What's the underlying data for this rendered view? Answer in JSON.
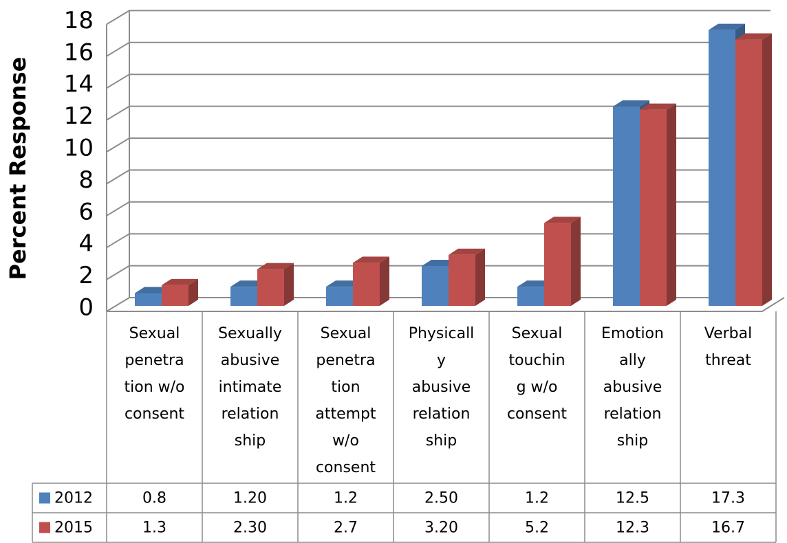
{
  "chart_data": {
    "type": "bar",
    "y_axis_label": "Percent Response",
    "categories": [
      "Sexual\npenetra\ntion w/o\nconsent",
      "Sexually\nabusive\nintimate\nrelation\nship",
      "Sexual\npenetra\ntion\nattempt\nw/o\nconsent",
      "Physicall\ny\nabusive\nrelation\nship",
      "Sexual\ntouchin\ng w/o\nconsent",
      "Emotion\nally\nabusive\nrelation\nship",
      "Verbal\nthreat"
    ],
    "series": [
      {
        "name": "2012",
        "color": "#4f81bd",
        "values": [
          0.8,
          1.2,
          1.2,
          2.5,
          1.2,
          12.5,
          17.3
        ],
        "value_labels": [
          "0.8",
          "1.20",
          "1.2",
          "2.50",
          "1.2",
          "12.5",
          "17.3"
        ]
      },
      {
        "name": "2015",
        "color": "#c0504d",
        "values": [
          1.3,
          2.3,
          2.7,
          3.2,
          5.2,
          12.3,
          16.7
        ],
        "value_labels": [
          "1.3",
          "2.30",
          "2.7",
          "3.20",
          "5.2",
          "12.3",
          "16.7"
        ]
      }
    ],
    "ylim": [
      0,
      18
    ],
    "yticks": [
      0,
      2,
      4,
      6,
      8,
      10,
      12,
      14,
      16,
      18
    ],
    "grid": true,
    "data_table": true
  }
}
